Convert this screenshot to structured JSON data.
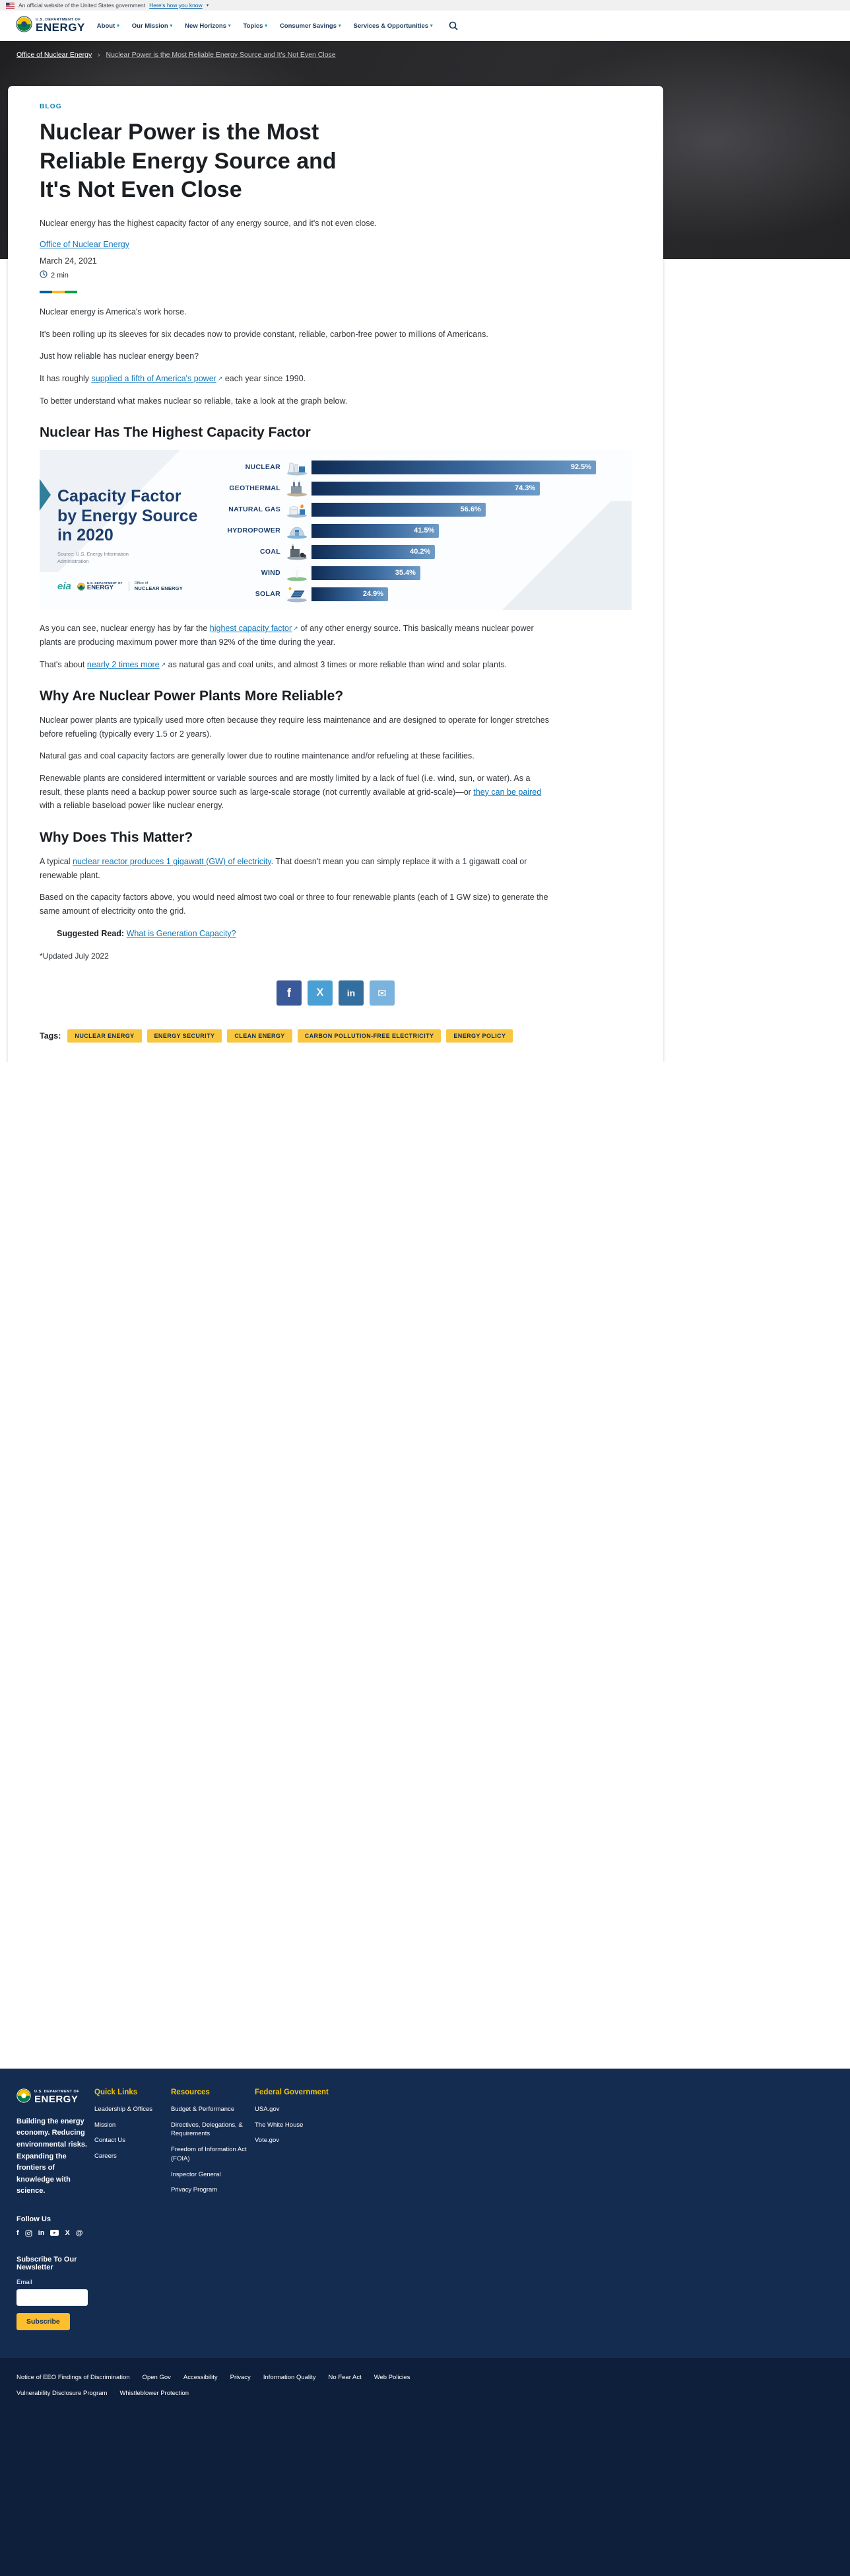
{
  "banner": {
    "official_text": "An official website of the United States government",
    "how_link": "Here's how you know"
  },
  "brand": {
    "dept": "U.S. DEPARTMENT OF",
    "word": "ENERGY"
  },
  "header": {
    "nav": [
      {
        "label": "About"
      },
      {
        "label": "Our Mission"
      },
      {
        "label": "New Horizons"
      },
      {
        "label": "Topics"
      },
      {
        "label": "Consumer Savings"
      },
      {
        "label": "Services & Opportunities"
      }
    ]
  },
  "breadcrumb": {
    "parent": "Office of Nuclear Energy",
    "current": "Nuclear Power is the Most Reliable Energy Source and It's Not Even Close"
  },
  "article": {
    "kicker": "BLOG",
    "title": "Nuclear Power is the Most Reliable Energy Source and It's Not Even Close",
    "subtitle": "Nuclear energy has the highest capacity factor of any energy source, and it's not even close.",
    "byline": "Office of Nuclear Energy",
    "date": "March 24, 2021",
    "read_time": "2 min",
    "intro": {
      "p1": "Nuclear energy is America's work horse.",
      "p2": "It's been rolling up its sleeves for six decades now to provide constant, reliable, carbon-free power to millions of Americans.",
      "p3": "Just how reliable has nuclear energy been?",
      "p4_pre": "It has roughly ",
      "p4_link": "supplied a fifth of America's power",
      "p4_post": " each year since 1990.",
      "p5": "To better understand what makes nuclear so reliable, take a look at the graph below."
    },
    "section1": {
      "heading": "Nuclear Has The Highest Capacity Factor",
      "after_p1_pre": "As you can see, nuclear energy has by far the ",
      "after_p1_link": "highest capacity factor",
      "after_p1_post": " of any other energy source. This basically means nuclear power plants are producing maximum power more than 92% of the time during the year.",
      "after_p2_pre": "That's about ",
      "after_p2_link": "nearly 2 times more",
      "after_p2_post": " as natural gas and coal units, and almost 3 times or more reliable than wind and solar plants."
    },
    "section2": {
      "heading": "Why Are Nuclear Power Plants More Reliable?",
      "p1": "Nuclear power plants are typically used more often because they require less maintenance and are designed to operate for longer stretches before refueling (typically every 1.5 or 2 years).",
      "p2": "Natural gas and coal capacity factors are generally lower due to routine maintenance and/or refueling at these facilities.",
      "p3_pre": "Renewable plants are considered intermittent or variable sources and are mostly limited by a lack of fuel (i.e. wind, sun, or water). As a result, these plants need a backup power source such as large-scale storage (not currently available at grid-scale)—or ",
      "p3_link": "they can be paired",
      "p3_post": " with a reliable baseload power like nuclear energy."
    },
    "section3": {
      "heading": "Why Does This Matter?",
      "p1_pre": "A typical ",
      "p1_link": "nuclear reactor produces 1 gigawatt (GW) of electricity",
      "p1_post": ". That doesn't mean you can simply replace it with a 1 gigawatt coal or renewable plant.",
      "p2": "Based on the capacity factors above, you would need almost two coal or three to four renewable plants (each of 1 GW size) to generate the same amount of electricity onto the grid.",
      "suggested_label": "Suggested Read: ",
      "suggested_link": "What is Generation Capacity?",
      "updated": "*Updated July 2022"
    }
  },
  "chart_data": {
    "type": "bar",
    "title": "Capacity Factor by Energy Source in 2020",
    "source": "Source: U.S. Energy Information Administration",
    "categories": [
      "NUCLEAR",
      "GEOTHERMAL",
      "NATURAL GAS",
      "HYDROPOWER",
      "COAL",
      "WIND",
      "SOLAR"
    ],
    "values": [
      92.5,
      74.3,
      56.6,
      41.5,
      40.2,
      35.4,
      24.9
    ],
    "unit": "%",
    "xlim": [
      0,
      100
    ],
    "orientation": "horizontal",
    "legend": "none",
    "grid": false,
    "logos": {
      "eia": "eia",
      "office_pre": "Office of",
      "office_word": "NUCLEAR ENERGY"
    }
  },
  "tags": {
    "label": "Tags:",
    "items": [
      "NUCLEAR ENERGY",
      "ENERGY SECURITY",
      "CLEAN ENERGY",
      "CARBON POLLUTION-FREE ELECTRICITY",
      "ENERGY POLICY"
    ]
  },
  "footer": {
    "tagline": "Building the energy economy. Reducing environmental risks. Expanding the frontiers of knowledge with science.",
    "follow": "Follow Us",
    "subscribe_heading": "Subscribe To Our Newsletter",
    "email_label": "Email",
    "subscribe_button": "Subscribe",
    "columns": [
      {
        "heading": "Quick Links",
        "links": [
          "Leadership & Offices",
          "Mission",
          "Contact Us",
          "Careers"
        ]
      },
      {
        "heading": "Resources",
        "links": [
          "Budget & Performance",
          "Directives, Delegations, & Requirements",
          "Freedom of Information Act (FOIA)",
          "Inspector General",
          "Privacy Program"
        ]
      },
      {
        "heading": "Federal Government",
        "links": [
          "USA.gov",
          "The White House",
          "Vote.gov"
        ]
      }
    ],
    "bottom_row1": [
      "Notice of EEO Findings of Discrimination",
      "Open Gov",
      "Accessibility",
      "Privacy",
      "Information Quality",
      "No Fear Act",
      "Web Policies"
    ],
    "bottom_row2": [
      "Vulnerability Disclosure Program",
      "Whistleblower Protection"
    ]
  }
}
